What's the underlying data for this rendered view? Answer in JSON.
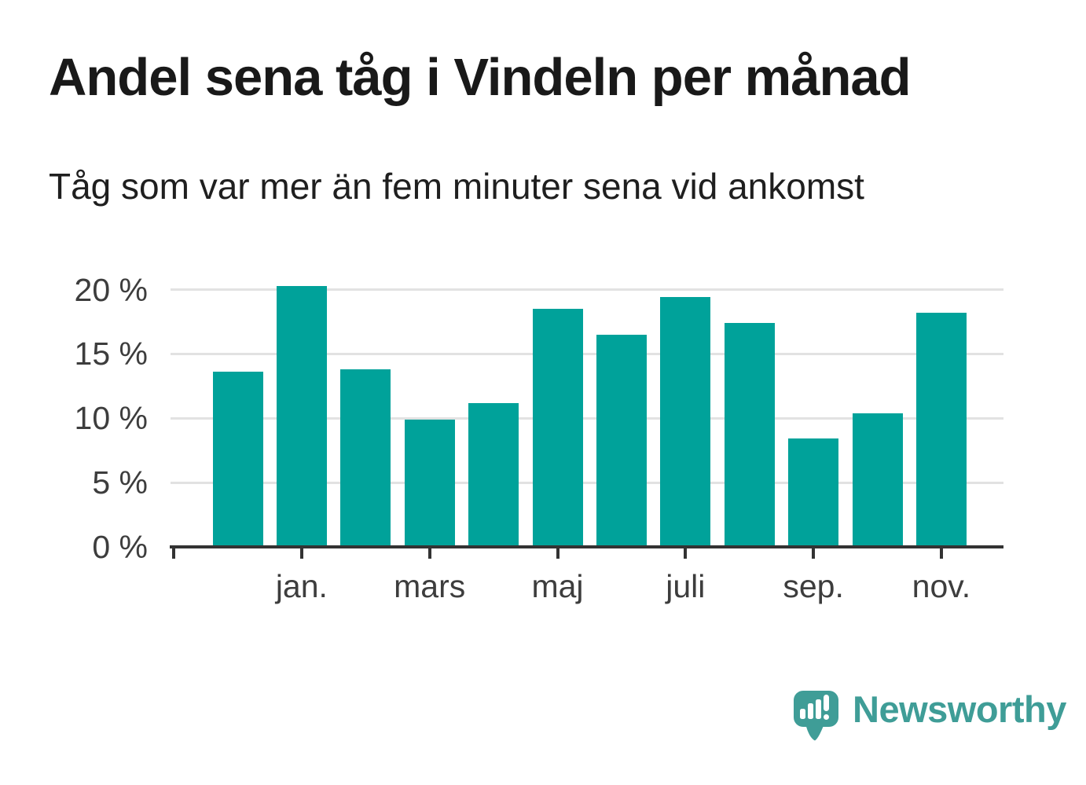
{
  "header": {
    "title": "Andel sena tåg i Vindeln per månad",
    "subtitle": "Tåg som var mer än fem minuter sena vid ankomst"
  },
  "chart_data": {
    "type": "bar",
    "title": "Andel sena tåg i Vindeln per månad",
    "subtitle": "Tåg som var mer än fem minuter sena vid ankomst",
    "unit": "%",
    "categories": [
      "",
      "jan.",
      "",
      "mars",
      "",
      "maj",
      "",
      "juli",
      "",
      "sep.",
      "",
      "nov."
    ],
    "values": [
      13.6,
      20.3,
      13.8,
      9.9,
      11.2,
      18.5,
      16.5,
      19.4,
      17.4,
      8.4,
      10.4,
      18.2
    ],
    "x_tick_labels": [
      "jan.",
      "mars",
      "maj",
      "juli",
      "sep.",
      "nov."
    ],
    "y_ticks": [
      0,
      5,
      10,
      15,
      20
    ],
    "y_tick_labels": [
      "0 %",
      "5 %",
      "10 %",
      "15 %",
      "20 %"
    ],
    "ylim": [
      0,
      21
    ],
    "grid": "horizontal",
    "legend": "none",
    "bar_color": "#00a29a"
  },
  "footer": {
    "brand": "Newsworthy",
    "logo_icon": "newsworthy-bar-chart-speech-bubble-icon"
  },
  "colors": {
    "bar": "#00a29a",
    "brand": "#3f9d97",
    "title_text": "#191919",
    "axis_text": "#3d3d3d",
    "axis_line": "#333333",
    "gridline": "#e2e2e2",
    "background": "#ffffff"
  }
}
